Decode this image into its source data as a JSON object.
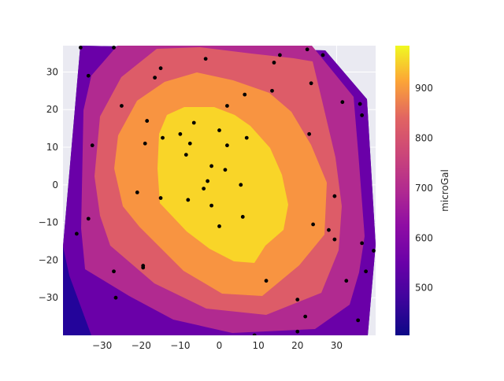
{
  "chart_data": {
    "type": "contour",
    "title": "",
    "xlabel": "",
    "ylabel": "",
    "xlim": [
      -40,
      40
    ],
    "ylim": [
      -40,
      37
    ],
    "xticks": [
      -30,
      -20,
      -10,
      0,
      10,
      20,
      30
    ],
    "xtick_labels": [
      "−30",
      "−20",
      "−10",
      "0",
      "10",
      "20",
      "30"
    ],
    "yticks": [
      -30,
      -20,
      -10,
      0,
      10,
      20,
      30
    ],
    "ytick_labels": [
      "−30",
      "−20",
      "−10",
      "0",
      "10",
      "20",
      "30"
    ],
    "grid": true,
    "colormap": "plasma",
    "colorbar": {
      "label": "microGal",
      "range": [
        405,
        985
      ],
      "ticks": [
        500,
        600,
        700,
        800,
        900
      ],
      "tick_labels": [
        "500",
        "600",
        "700",
        "800",
        "900"
      ]
    },
    "contour_levels": [
      {
        "value": 430,
        "color": "#23049a"
      },
      {
        "value": 550,
        "color": "#6a00a8"
      },
      {
        "value": 650,
        "color": "#b12a90"
      },
      {
        "value": 720,
        "color": "#dd5c68"
      },
      {
        "value": 820,
        "color": "#f89441"
      },
      {
        "value": 940,
        "color": "#f9d528"
      }
    ],
    "points": [
      [
        -35.5,
        36.5
      ],
      [
        -27,
        36.5
      ],
      [
        -36.5,
        -13
      ],
      [
        -33.5,
        -9
      ],
      [
        -33.5,
        29
      ],
      [
        -32.5,
        10.5
      ],
      [
        -27,
        -23
      ],
      [
        -26.5,
        -30
      ],
      [
        -25,
        21
      ],
      [
        -21,
        -2
      ],
      [
        -19.5,
        -21.5
      ],
      [
        -19.5,
        -22
      ],
      [
        -19,
        11
      ],
      [
        -18.5,
        17
      ],
      [
        -16.5,
        28.5
      ],
      [
        -15,
        31
      ],
      [
        -15,
        -3.5
      ],
      [
        -14.5,
        12.5
      ],
      [
        -10,
        13.5
      ],
      [
        -8.5,
        8
      ],
      [
        -8,
        -4
      ],
      [
        -7.5,
        11
      ],
      [
        -6.5,
        16.5
      ],
      [
        -3.5,
        33.5
      ],
      [
        -4,
        -1
      ],
      [
        -3,
        1
      ],
      [
        -2,
        5
      ],
      [
        -2,
        -5.5
      ],
      [
        0,
        14.5
      ],
      [
        0,
        -11
      ],
      [
        1.5,
        4
      ],
      [
        2,
        10.5
      ],
      [
        2,
        21
      ],
      [
        5.5,
        0
      ],
      [
        6,
        -8.5
      ],
      [
        6.5,
        24
      ],
      [
        7,
        12.5
      ],
      [
        9,
        -40
      ],
      [
        12,
        -25.5
      ],
      [
        13.5,
        25
      ],
      [
        14,
        32.5
      ],
      [
        15.5,
        34.5
      ],
      [
        20,
        -30.5
      ],
      [
        20,
        -39
      ],
      [
        22,
        -35
      ],
      [
        22.5,
        36
      ],
      [
        23,
        13.5
      ],
      [
        23.5,
        27
      ],
      [
        24,
        -10.5
      ],
      [
        26.5,
        34.5
      ],
      [
        28,
        -12
      ],
      [
        29.5,
        -3
      ],
      [
        29.5,
        -14.5
      ],
      [
        31.5,
        22
      ],
      [
        32.5,
        -25.5
      ],
      [
        35.5,
        -36
      ],
      [
        36,
        21.5
      ],
      [
        36.5,
        18.5
      ],
      [
        36.5,
        -15.5
      ],
      [
        37.5,
        -23
      ],
      [
        39.5,
        -17.5
      ]
    ]
  }
}
